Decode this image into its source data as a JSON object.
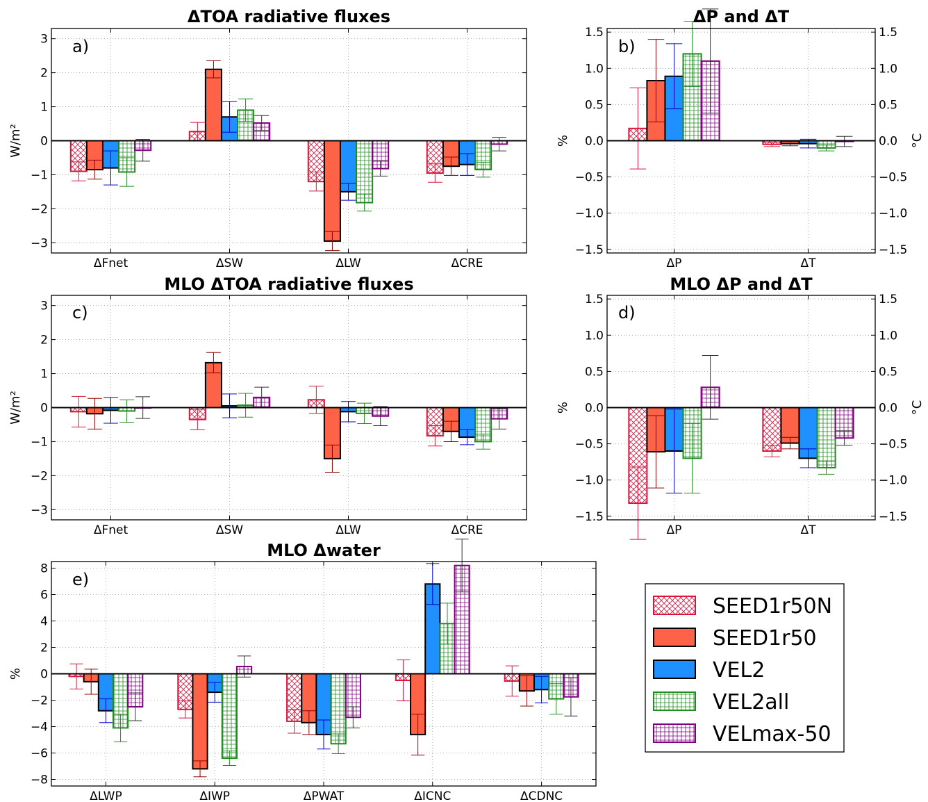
{
  "legend": {
    "series": [
      {
        "name": "SEED1r50N",
        "color": "#dc143c",
        "fill": "cross"
      },
      {
        "name": "SEED1r50",
        "color": "#000000",
        "fill": "#ff6347"
      },
      {
        "name": "VEL2",
        "color": "#000000",
        "fill": "#1e90ff"
      },
      {
        "name": "VEL2all",
        "color": "#228b22",
        "fill": "grid"
      },
      {
        "name": "VELmax-50",
        "color": "#800080",
        "fill": "grid"
      }
    ]
  },
  "chart_data": [
    {
      "id": "a",
      "type": "bar",
      "title": "ΔTOA radiative fluxes",
      "panel_label": "a)",
      "ylabel": "W/m²",
      "ylim": [
        -3.3,
        3.3
      ],
      "yticks": [
        -3,
        -2,
        -1,
        0,
        1,
        2,
        3
      ],
      "categories": [
        "ΔFnet",
        "ΔSW",
        "ΔLW",
        "ΔCRE"
      ],
      "series": [
        {
          "name": "SEED1r50N",
          "values": [
            -0.9,
            0.27,
            -1.2,
            -0.95
          ],
          "errors": [
            0.28,
            0.27,
            0.28,
            0.27
          ]
        },
        {
          "name": "SEED1r50",
          "values": [
            -0.85,
            2.1,
            -2.95,
            -0.75
          ],
          "errors": [
            0.28,
            0.25,
            0.28,
            0.27
          ]
        },
        {
          "name": "VEL2",
          "values": [
            -0.8,
            0.7,
            -1.5,
            -0.7
          ],
          "errors": [
            0.5,
            0.45,
            0.25,
            0.32
          ]
        },
        {
          "name": "VEL2all",
          "values": [
            -0.92,
            0.9,
            -1.82,
            -0.85
          ],
          "errors": [
            0.42,
            0.33,
            0.25,
            0.22
          ]
        },
        {
          "name": "VELmax-50",
          "values": [
            -0.28,
            0.52,
            -0.82,
            -0.1
          ],
          "errors": [
            0.32,
            0.22,
            0.22,
            0.2
          ]
        }
      ]
    },
    {
      "id": "b",
      "type": "bar",
      "title": "ΔP and ΔT",
      "panel_label": "b)",
      "ylabel": "%",
      "ylabel_right": "°C",
      "ylim": [
        -1.55,
        1.55
      ],
      "yticks": [
        -1.5,
        -1.0,
        -0.5,
        0.0,
        0.5,
        1.0,
        1.5
      ],
      "categories": [
        "ΔP",
        "ΔT"
      ],
      "series": [
        {
          "name": "SEED1r50N",
          "values": [
            0.17,
            -0.05
          ],
          "errors": [
            0.56,
            0.03
          ]
        },
        {
          "name": "SEED1r50",
          "values": [
            0.83,
            -0.04
          ],
          "errors": [
            0.57,
            0.03
          ]
        },
        {
          "name": "VEL2",
          "values": [
            0.89,
            -0.04
          ],
          "errors": [
            0.45,
            0.06
          ]
        },
        {
          "name": "VEL2all",
          "values": [
            1.2,
            -0.1
          ],
          "errors": [
            0.45,
            0.04
          ]
        },
        {
          "name": "VELmax-50",
          "values": [
            1.1,
            -0.01
          ],
          "errors": [
            0.72,
            0.07
          ]
        }
      ]
    },
    {
      "id": "c",
      "type": "bar",
      "title": "MLO ΔTOA radiative fluxes",
      "panel_label": "c)",
      "ylabel": "W/m²",
      "ylim": [
        -3.3,
        3.3
      ],
      "yticks": [
        -3,
        -2,
        -1,
        0,
        1,
        2,
        3
      ],
      "categories": [
        "ΔFnet",
        "ΔSW",
        "ΔLW",
        "ΔCRE"
      ],
      "series": [
        {
          "name": "SEED1r50N",
          "values": [
            -0.12,
            -0.35,
            0.23,
            -0.83
          ],
          "errors": [
            0.45,
            0.3,
            0.4,
            0.3
          ]
        },
        {
          "name": "SEED1r50",
          "values": [
            -0.18,
            1.32,
            -1.5,
            -0.7
          ],
          "errors": [
            0.45,
            0.3,
            0.4,
            0.3
          ]
        },
        {
          "name": "VEL2",
          "values": [
            -0.08,
            0.05,
            -0.12,
            -0.87
          ],
          "errors": [
            0.38,
            0.35,
            0.3,
            0.22
          ]
        },
        {
          "name": "VEL2all",
          "values": [
            -0.1,
            0.07,
            -0.17,
            -1.0
          ],
          "errors": [
            0.33,
            0.35,
            0.3,
            0.22
          ]
        },
        {
          "name": "VELmax-50",
          "values": [
            0.0,
            0.3,
            -0.25,
            -0.33
          ],
          "errors": [
            0.32,
            0.3,
            0.28,
            0.3
          ]
        }
      ]
    },
    {
      "id": "d",
      "type": "bar",
      "title": "MLO ΔP and ΔT",
      "panel_label": "d)",
      "ylabel": "%",
      "ylabel_right": "°C",
      "ylim": [
        -1.55,
        1.55
      ],
      "yticks": [
        -1.5,
        -1.0,
        -0.5,
        0.0,
        0.5,
        1.0,
        1.5
      ],
      "categories": [
        "ΔP",
        "ΔT"
      ],
      "series": [
        {
          "name": "SEED1r50N",
          "values": [
            -1.32,
            -0.6
          ],
          "errors": [
            0.5,
            0.08
          ]
        },
        {
          "name": "SEED1r50",
          "values": [
            -0.61,
            -0.49
          ],
          "errors": [
            0.5,
            0.08
          ]
        },
        {
          "name": "VEL2",
          "values": [
            -0.6,
            -0.7
          ],
          "errors": [
            0.58,
            0.13
          ]
        },
        {
          "name": "VEL2all",
          "values": [
            -0.7,
            -0.83
          ],
          "errors": [
            0.48,
            0.09
          ]
        },
        {
          "name": "VELmax-50",
          "values": [
            0.28,
            -0.42
          ],
          "errors": [
            0.44,
            0.1
          ]
        }
      ]
    },
    {
      "id": "e",
      "type": "bar",
      "title": "MLO Δwater",
      "panel_label": "e)",
      "ylabel": "%",
      "ylim": [
        -8.5,
        8.5
      ],
      "yticks": [
        -8,
        -6,
        -4,
        -2,
        0,
        2,
        4,
        6,
        8
      ],
      "categories": [
        "ΔLWP",
        "ΔIWP",
        "ΔPWAT",
        "ΔICNC",
        "ΔCDNC"
      ],
      "series": [
        {
          "name": "SEED1r50N",
          "values": [
            -0.2,
            -2.7,
            -3.6,
            -0.5,
            -0.55
          ],
          "errors": [
            0.95,
            0.65,
            0.9,
            1.55,
            1.15
          ]
        },
        {
          "name": "SEED1r50",
          "values": [
            -0.6,
            -7.2,
            -3.7,
            -4.6,
            -1.3
          ],
          "errors": [
            0.95,
            0.6,
            0.9,
            1.55,
            1.15
          ]
        },
        {
          "name": "VEL2",
          "values": [
            -2.8,
            -1.4,
            -4.6,
            6.8,
            -1.2
          ],
          "errors": [
            0.9,
            0.75,
            1.1,
            1.55,
            1.0
          ]
        },
        {
          "name": "VEL2all",
          "values": [
            -4.1,
            -6.4,
            -5.3,
            3.8,
            -1.9
          ],
          "errors": [
            1.05,
            0.55,
            0.75,
            1.55,
            1.15
          ]
        },
        {
          "name": "VELmax-50",
          "values": [
            -2.5,
            0.55,
            -3.3,
            8.2,
            -1.75
          ],
          "errors": [
            1.05,
            0.8,
            0.8,
            2.0,
            1.45
          ]
        }
      ]
    }
  ]
}
